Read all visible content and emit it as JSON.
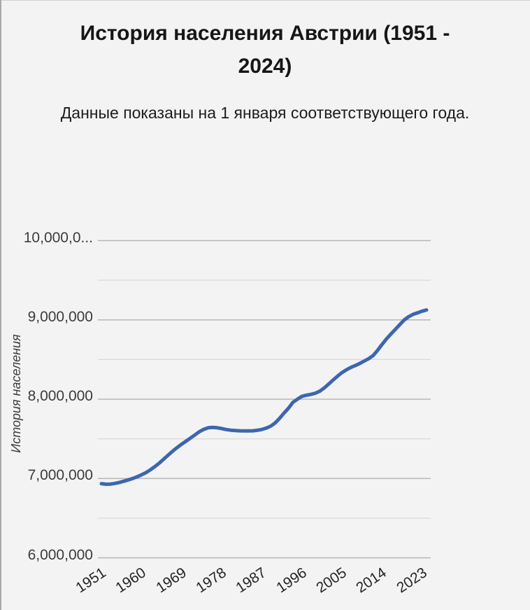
{
  "header": {
    "title": "История населения Австрии (1951 - 2024)",
    "title_lines": [
      "История населения Австрии (1951 -",
      "2024)"
    ],
    "subtitle": "Данные показаны на 1 января соответствующего года."
  },
  "chart_data": {
    "type": "line",
    "title": "История населения Австрии (1951 - 2024)",
    "subtitle": "Данные показаны на 1 января соответствующего года.",
    "xlabel": "",
    "ylabel": "История населения",
    "xlim": [
      1951,
      2024
    ],
    "ylim": [
      6000000,
      10000000
    ],
    "grid": {
      "horizontal": true,
      "major_step": 1000000,
      "minor_step": 500000
    },
    "legend_position": "none",
    "x_tick_labels": [
      "1951",
      "1960",
      "1969",
      "1978",
      "1987",
      "1996",
      "2005",
      "2014",
      "2023"
    ],
    "x_tick_years": [
      1951,
      1960,
      1969,
      1978,
      1987,
      1996,
      2005,
      2014,
      2023
    ],
    "y_tick_labels": [
      "10,000,0...",
      "9,000,000",
      "8,000,000",
      "7,000,000",
      "6,000,000"
    ],
    "y_tick_values": [
      10000000,
      9000000,
      8000000,
      7000000,
      6000000
    ],
    "series": [
      {
        "name": "История населения",
        "x": [
          1951,
          1952,
          1953,
          1954,
          1955,
          1956,
          1957,
          1958,
          1959,
          1960,
          1961,
          1962,
          1963,
          1964,
          1965,
          1966,
          1967,
          1968,
          1969,
          1970,
          1971,
          1972,
          1973,
          1974,
          1975,
          1976,
          1977,
          1978,
          1979,
          1980,
          1981,
          1982,
          1983,
          1984,
          1985,
          1986,
          1987,
          1988,
          1989,
          1990,
          1991,
          1992,
          1993,
          1994,
          1995,
          1996,
          1997,
          1998,
          1999,
          2000,
          2001,
          2002,
          2003,
          2004,
          2005,
          2006,
          2007,
          2008,
          2009,
          2010,
          2011,
          2012,
          2013,
          2014,
          2015,
          2016,
          2017,
          2018,
          2019,
          2020,
          2021,
          2022,
          2023,
          2024
        ],
        "y": [
          6935000,
          6928000,
          6930000,
          6938000,
          6950000,
          6965000,
          6982000,
          7000000,
          7022000,
          7046000,
          7074000,
          7110000,
          7150000,
          7195000,
          7245000,
          7295000,
          7345000,
          7390000,
          7432000,
          7470000,
          7510000,
          7550000,
          7590000,
          7620000,
          7640000,
          7645000,
          7640000,
          7630000,
          7618000,
          7610000,
          7605000,
          7602000,
          7600000,
          7600000,
          7602000,
          7608000,
          7618000,
          7635000,
          7660000,
          7700000,
          7758000,
          7825000,
          7885000,
          7960000,
          8000000,
          8035000,
          8050000,
          8060000,
          8075000,
          8100000,
          8140000,
          8190000,
          8240000,
          8290000,
          8335000,
          8370000,
          8400000,
          8425000,
          8450000,
          8480000,
          8510000,
          8550000,
          8615000,
          8690000,
          8760000,
          8820000,
          8880000,
          8940000,
          9000000,
          9040000,
          9070000,
          9090000,
          9110000,
          9125000
        ]
      }
    ]
  },
  "colors": {
    "background": "#f3f3f3",
    "line": "#3d66ae",
    "grid_major": "#b7b7b7",
    "grid_minor": "#d9d9d9",
    "text_title": "#161616",
    "text_axis": "#3c3c3c",
    "window_edge": "#a9a9a9"
  }
}
